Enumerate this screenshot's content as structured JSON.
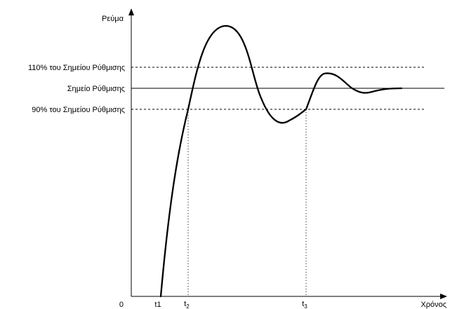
{
  "chart_data": {
    "type": "line",
    "ylabel": "Ρεύμα",
    "xlabel": "Χρόνος",
    "origin_label": "0",
    "reference_lines": [
      {
        "label": "110% του Σημείου Ρύθμισης",
        "value": 1.1,
        "style": "dashed"
      },
      {
        "label": "Σημείο Ρύθμισης",
        "value": 1.0,
        "style": "solid"
      },
      {
        "label": "90% του Σημείου Ρύθμισης",
        "value": 0.9,
        "style": "dashed"
      }
    ],
    "time_markers": [
      {
        "label": "t1",
        "subscript": ""
      },
      {
        "label": "t",
        "subscript": "2"
      },
      {
        "label": "t",
        "subscript": "3"
      }
    ],
    "series": [
      {
        "x": [
          0,
          0.03,
          0.08,
          0.13,
          0.18,
          0.23,
          0.28,
          0.33,
          0.38,
          0.43,
          0.48,
          0.53,
          0.56,
          0.6,
          0.65,
          0.7,
          0.75,
          0.8,
          0.85,
          0.9
        ],
        "values": [
          0,
          0.35,
          0.9,
          1.25,
          1.4,
          1.42,
          1.36,
          1.15,
          0.92,
          0.86,
          0.91,
          1.05,
          1.08,
          1.04,
          0.99,
          0.98,
          1.0,
          1.0,
          1.0,
          1.0
        ]
      }
    ],
    "line_color": "#000000",
    "grid": false
  }
}
